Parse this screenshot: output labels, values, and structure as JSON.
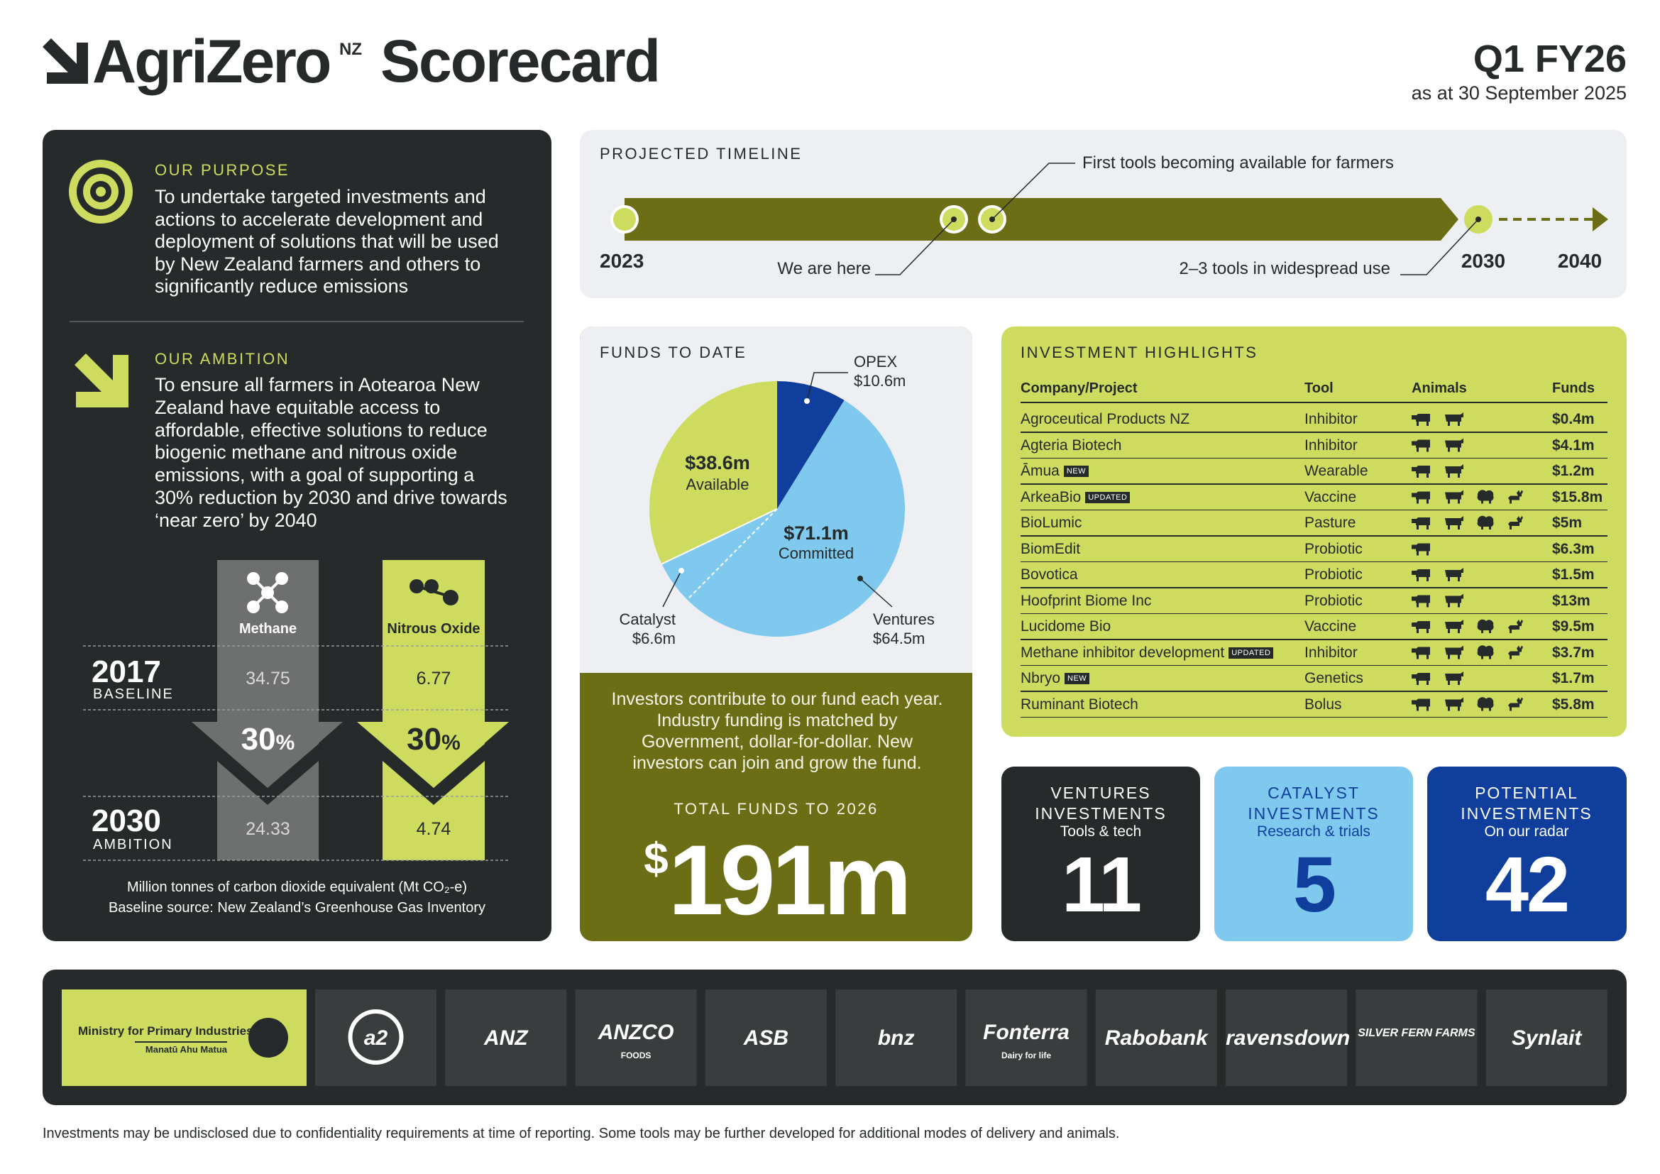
{
  "header": {
    "brand": "AgriZero",
    "brand_mark": "NZ",
    "title": "Scorecard",
    "period": "Q1 FY26",
    "as_at": "as at 30 September 2025"
  },
  "purpose": {
    "heading": "OUR PURPOSE",
    "text": "To undertake targeted investments and actions to accelerate development and deployment of solutions that will be used by New Zealand farmers and others to significantly reduce emissions"
  },
  "ambition": {
    "heading": "OUR AMBITION",
    "text": "To ensure all farmers in Aotearoa New Zealand have equitable access to affordable, effective solutions to reduce biogenic methane and nitrous oxide emissions, with a goal of supporting a 30% reduction by 2030 and drive towards ‘near zero’ by 2040"
  },
  "emissions": {
    "gases": [
      "Methane",
      "Nitrous Oxide"
    ],
    "rows": [
      {
        "year": "2017",
        "label": "BASELINE",
        "values": [
          34.75,
          6.77
        ]
      },
      {
        "year": "2030",
        "label": "AMBITION",
        "values": [
          24.33,
          4.74
        ]
      }
    ],
    "reduction": {
      "amount": "30",
      "unit": "%"
    },
    "notes": [
      "Million tonnes of carbon dioxide equivalent (Mt CO₂-e)",
      "Baseline source: New Zealand’s Greenhouse Gas Inventory"
    ]
  },
  "timeline": {
    "heading": "PROJECTED TIMELINE",
    "years": [
      "2023",
      "2030",
      "2040"
    ],
    "annotations": [
      "We are here",
      "First tools becoming available for farmers",
      "2–3 tools in widespread use"
    ]
  },
  "chart_data": {
    "type": "pie",
    "title": "FUNDS TO DATE",
    "categories": [
      "OPEX",
      "Ventures",
      "Catalyst",
      "Available"
    ],
    "values": [
      10.6,
      64.5,
      6.6,
      38.6
    ],
    "value_labels": [
      "$10.6m",
      "$64.5m",
      "$6.6m",
      "$38.6m"
    ],
    "colors": [
      "#0f3e9c",
      "#7fc9ee",
      "#7fc9ee",
      "#cddc5e"
    ],
    "annotations": [
      "$71.1m",
      "Committed"
    ]
  },
  "funds": {
    "text": "Investors contribute to our fund each year. Industry funding is matched by Government, dollar-for-dollar. New investors can join and grow the fund.",
    "total_heading": "TOTAL FUNDS TO 2026",
    "total": {
      "currency": "$",
      "amount": "191m"
    }
  },
  "highlights": {
    "heading": "INVESTMENT HIGHLIGHTS",
    "columns": [
      "Company/Project",
      "Tool",
      "Animals",
      "Funds"
    ],
    "rows": [
      {
        "company": "Agroceutical Products NZ",
        "tool": "Inhibitor",
        "animals": 2,
        "funds": "$0.4m"
      },
      {
        "company": "Agteria Biotech",
        "tool": "Inhibitor",
        "animals": 2,
        "funds": "$4.1m"
      },
      {
        "company": "Āmua",
        "badge": "NEW",
        "tool": "Wearable",
        "animals": 2,
        "funds": "$1.2m"
      },
      {
        "company": "ArkeaBio",
        "badge": "UPDATED",
        "tool": "Vaccine",
        "animals": 4,
        "funds": "$15.8m"
      },
      {
        "company": "BioLumic",
        "tool": "Pasture",
        "animals": 4,
        "funds": "$5m"
      },
      {
        "company": "BiomEdit",
        "tool": "Probiotic",
        "animals": 1,
        "funds": "$6.3m"
      },
      {
        "company": "Bovotica",
        "tool": "Probiotic",
        "animals": 2,
        "funds": "$1.5m"
      },
      {
        "company": "Hoofprint Biome Inc",
        "tool": "Probiotic",
        "animals": 2,
        "funds": "$13m"
      },
      {
        "company": "Lucidome Bio",
        "tool": "Vaccine",
        "animals": 4,
        "funds": "$9.5m"
      },
      {
        "company": "Methane inhibitor development",
        "badge": "UPDATED",
        "tool": "Inhibitor",
        "animals": 4,
        "funds": "$3.7m"
      },
      {
        "company": "Nbryo",
        "badge": "NEW",
        "tool": "Genetics",
        "animals": 2,
        "funds": "$1.7m"
      },
      {
        "company": "Ruminant Biotech",
        "tool": "Bolus",
        "animals": 4,
        "funds": "$5.8m"
      }
    ]
  },
  "stats": [
    {
      "title": "VENTURES INVESTMENTS",
      "subtitle": "Tools & tech",
      "value": 11
    },
    {
      "title": "CATALYST INVESTMENTS",
      "subtitle": "Research & trials",
      "value": 5
    },
    {
      "title": "POTENTIAL INVESTMENTS",
      "subtitle": "On our radar",
      "value": 42
    }
  ],
  "partners": [
    {
      "name": "Ministry for Primary Industries",
      "sub": "Manatū Ahu Matua"
    },
    {
      "name": "a2"
    },
    {
      "name": "ANZ"
    },
    {
      "name": "ANZCO",
      "sub": "FOODS"
    },
    {
      "name": "ASB"
    },
    {
      "name": "bnz"
    },
    {
      "name": "Fonterra",
      "sub": "Dairy for life"
    },
    {
      "name": "Rabobank"
    },
    {
      "name": "ravensdown"
    },
    {
      "name": "SILVER FERN FARMS"
    },
    {
      "name": "Synlait"
    }
  ],
  "footer": "Investments may be undisclosed due to confidentiality requirements at time of reporting. Some tools may be further developed for additional modes of delivery and animals."
}
